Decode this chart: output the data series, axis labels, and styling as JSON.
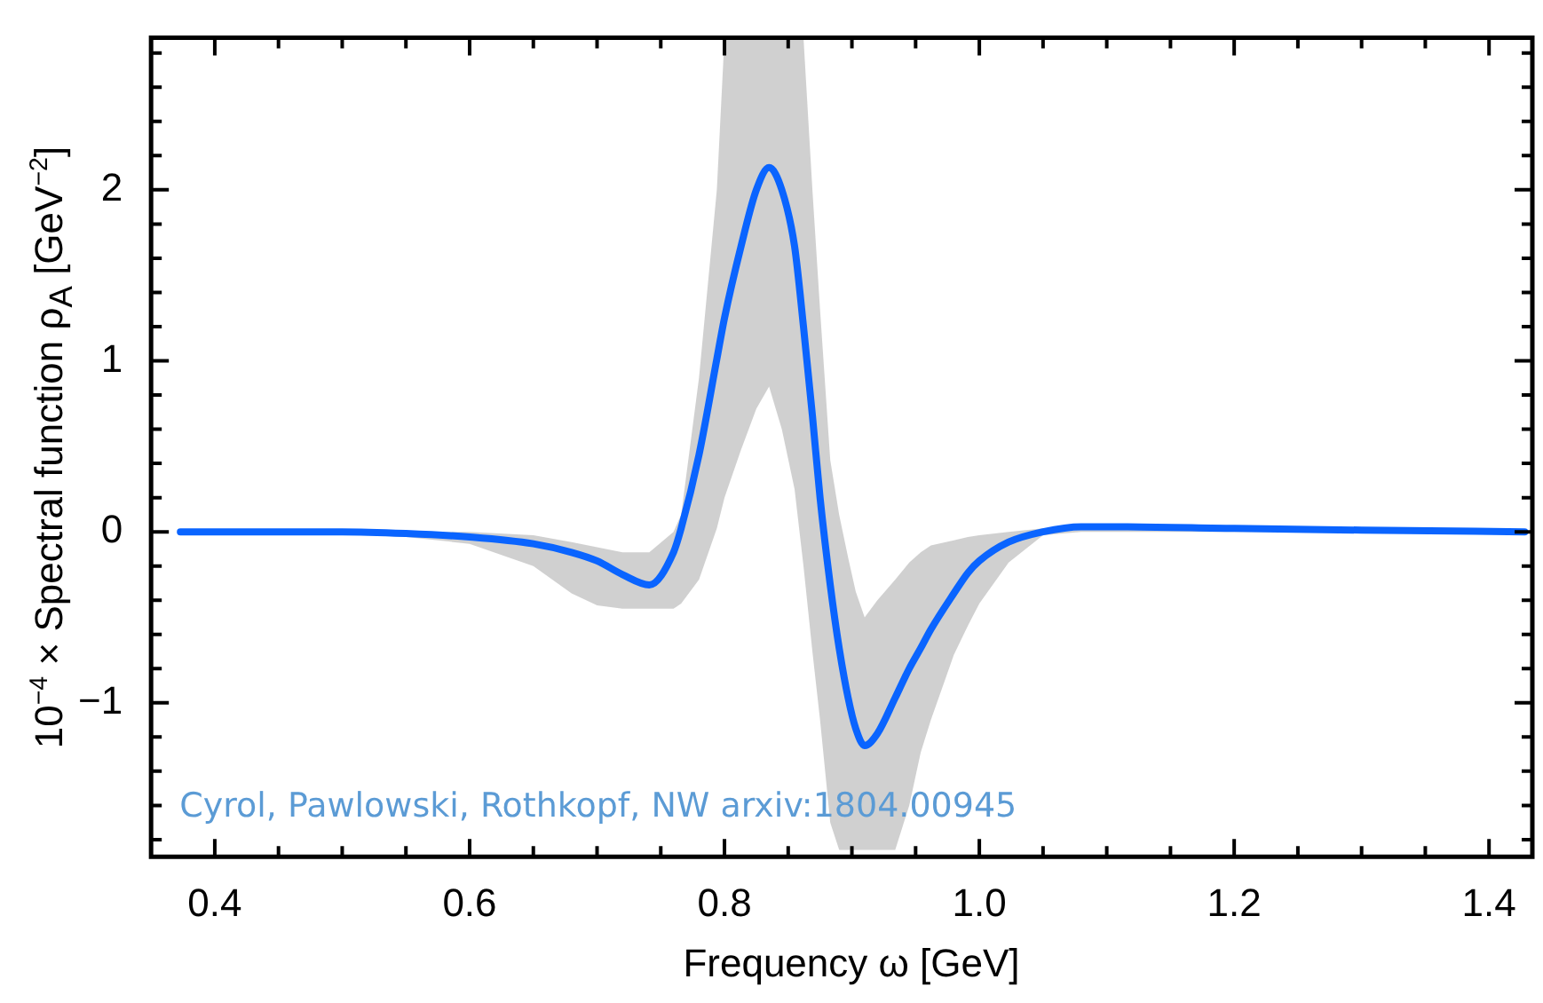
{
  "chart_data": {
    "type": "line",
    "xlabel": "Frequency ω [GeV]",
    "ylabel": "10$^{−4}$ × Spectral function ρ$_{A}$ [GeV$^{−2}$]",
    "annotations": [
      "Cyrol, Pawlowski, Rothkopf, NW arxiv:1804.00945"
    ],
    "xlim": [
      0.35,
      1.434
    ],
    "ylim": [
      -1.9,
      2.89
    ],
    "xticks": [
      0.4,
      {
        "value": 0.45,
        "label": null
      },
      {
        "value": 0.5,
        "label": null
      },
      {
        "value": 0.55,
        "label": null
      },
      0.6,
      {
        "value": 0.65,
        "label": null
      },
      {
        "value": 0.7,
        "label": null
      },
      {
        "value": 0.75,
        "label": null
      },
      0.8,
      {
        "value": 0.85,
        "label": null
      },
      {
        "value": 0.9,
        "label": null
      },
      {
        "value": 0.95,
        "label": null
      },
      {
        "value": 1,
        "label": "1.0"
      },
      {
        "value": 1.05,
        "label": null
      },
      {
        "value": 1.1,
        "label": null
      },
      {
        "value": 1.15,
        "label": null
      },
      1.2,
      {
        "value": 1.25,
        "label": null
      },
      {
        "value": 1.3,
        "label": null
      },
      {
        "value": 1.35,
        "label": null
      },
      1.4
    ],
    "yticks": [
      {
        "value": -1.8,
        "label": null
      },
      {
        "value": -1.6,
        "label": null
      },
      {
        "value": -1.4,
        "label": null
      },
      {
        "value": -1.2,
        "label": null
      },
      {
        "value": -1,
        "label": "−1"
      },
      {
        "value": -0.8,
        "label": null
      },
      {
        "value": -0.6,
        "label": null
      },
      {
        "value": -0.4,
        "label": null
      },
      {
        "value": -0.2,
        "label": null
      },
      0,
      {
        "value": 0.2,
        "label": null
      },
      {
        "value": 0.4,
        "label": null
      },
      {
        "value": 0.6,
        "label": null
      },
      {
        "value": 0.8,
        "label": null
      },
      1,
      {
        "value": 1.2,
        "label": null
      },
      {
        "value": 1.4,
        "label": null
      },
      {
        "value": 1.6,
        "label": null
      },
      {
        "value": 1.8,
        "label": null
      },
      2,
      {
        "value": 2.2,
        "label": null
      },
      {
        "value": 2.4,
        "label": null
      },
      {
        "value": 2.6,
        "label": null
      },
      {
        "value": 2.8,
        "label": null
      }
    ],
    "grid": false,
    "legend": false,
    "marker": "none",
    "line_style": "solid",
    "series": [
      {
        "color": "#0a64ff",
        "x": [
          0.373,
          0.45,
          0.5,
          0.55,
          0.6,
          0.65,
          0.68,
          0.7,
          0.72,
          0.741,
          0.76,
          0.766,
          0.78,
          0.794,
          0.8,
          0.813,
          0.825,
          0.835,
          0.845,
          0.855,
          0.862,
          0.869,
          0.875,
          0.883,
          0.89,
          0.897,
          0.903,
          0.91,
          0.92,
          0.934,
          0.945,
          0.954,
          0.962,
          0.98,
          0.991,
          1.0,
          1.023,
          1.05,
          1.08,
          1.1,
          1.2,
          1.3,
          1.428
        ],
        "values": [
          0,
          0,
          0,
          -0.01,
          -0.03,
          -0.07,
          -0.12,
          -0.17,
          -0.25,
          -0.31,
          -0.12,
          0.02,
          0.45,
          1.01,
          1.25,
          1.67,
          2.0,
          2.13,
          2.0,
          1.67,
          1.2,
          0.68,
          0.2,
          -0.31,
          -0.68,
          -0.97,
          -1.15,
          -1.25,
          -1.18,
          -0.97,
          -0.8,
          -0.68,
          -0.57,
          -0.36,
          -0.24,
          -0.17,
          -0.06,
          0.0,
          0.03,
          0.03,
          0.02,
          0.01,
          0
        ],
        "lower": [
          0,
          0,
          -0.01,
          -0.03,
          -0.07,
          -0.2,
          -0.36,
          -0.43,
          -0.45,
          -0.45,
          -0.45,
          -0.42,
          -0.28,
          0.02,
          0.2,
          0.48,
          0.72,
          0.85,
          0.6,
          0.25,
          -0.2,
          -0.7,
          -1.1,
          -1.7,
          -1.86,
          -1.86,
          -1.86,
          -1.86,
          -1.86,
          -1.86,
          -1.6,
          -1.29,
          -1.1,
          -0.72,
          -0.55,
          -0.42,
          -0.18,
          -0.02,
          0,
          0,
          0,
          0,
          0
        ],
        "upper": [
          0,
          0,
          0,
          0,
          0,
          -0.02,
          -0.06,
          -0.09,
          -0.12,
          -0.12,
          0.0,
          0.1,
          0.9,
          2.0,
          2.89,
          2.89,
          2.89,
          2.89,
          2.89,
          2.89,
          2.89,
          2.0,
          1.3,
          0.42,
          0.1,
          -0.15,
          -0.35,
          -0.5,
          -0.4,
          -0.28,
          -0.18,
          -0.12,
          -0.08,
          -0.05,
          -0.03,
          -0.02,
          0,
          0.02,
          0.03,
          0.03,
          0.02,
          0.01,
          0
        ]
      }
    ]
  }
}
